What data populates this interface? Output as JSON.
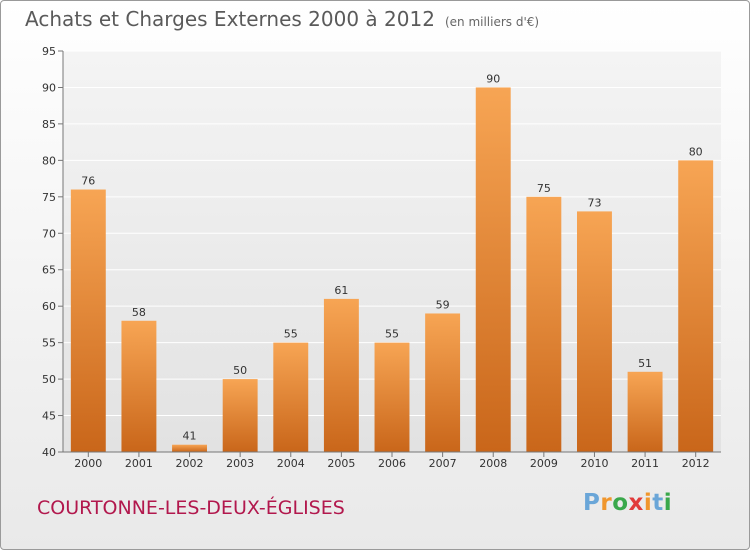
{
  "header": {
    "title": "Achats et Charges Externes 2000 à 2012",
    "unit": "(en milliers d'€)"
  },
  "footer": {
    "commune": "COURTONNE-LES-DEUX-ÉGLISES",
    "logo_letters": [
      "P",
      "r",
      "o",
      "x",
      "i",
      "t",
      "i"
    ],
    "logo_colors": [
      "#6aa6d8",
      "#f0962c",
      "#3aa84b",
      "#e13b3b",
      "#f0962c",
      "#6aa6d8",
      "#3aa84b"
    ]
  },
  "chart_data": {
    "type": "bar",
    "title": "Achats et Charges Externes 2000 à 2012",
    "subtitle": "(en milliers d'€)",
    "categories": [
      "2000",
      "2001",
      "2002",
      "2003",
      "2004",
      "2005",
      "2006",
      "2007",
      "2008",
      "2009",
      "2010",
      "2011",
      "2012"
    ],
    "values": [
      76,
      58,
      41,
      50,
      55,
      61,
      55,
      59,
      90,
      75,
      73,
      51,
      80
    ],
    "ylim": [
      40,
      95
    ],
    "yticks": [
      40,
      45,
      50,
      55,
      60,
      65,
      70,
      75,
      80,
      85,
      90,
      95
    ],
    "grid": true,
    "bar_color_top": "#f7a554",
    "bar_color_bottom": "#c9661a"
  }
}
